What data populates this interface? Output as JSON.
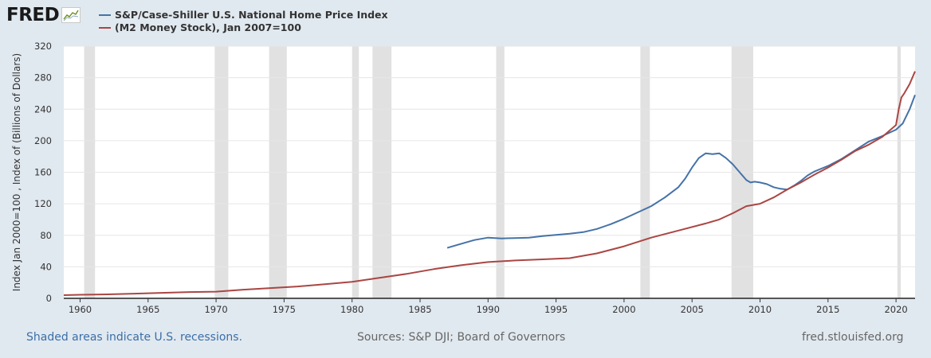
{
  "logo": {
    "text": "FRED",
    "graph_icon": "line-chart-icon"
  },
  "legend": [
    {
      "line1": "S&P/Case-Shiller U.S. National Home Price Index",
      "line2": "",
      "color": "#4572a7"
    },
    {
      "line1": "(M2 Money Stock), Jan 2007=100",
      "line2": "",
      "color": "#aa4643"
    }
  ],
  "footer": {
    "left": "Shaded areas indicate U.S. recessions.",
    "middle": "Sources: S&P DJI; Board of Governors",
    "right": "fred.stlouisfed.org"
  },
  "colors": {
    "background": "#e1e9f0",
    "plot_bg": "#ffffff",
    "recession": "#e1e1e1",
    "grid": "#e6e6e6"
  },
  "chart_data": {
    "type": "line",
    "ylabel": "Index Jan 2000=100 , Index of (Billions of Dollars)",
    "xlabel": "",
    "xlim": [
      1958.8,
      2021.4
    ],
    "ylim": [
      0,
      320
    ],
    "x_ticks": [
      1960,
      1965,
      1970,
      1975,
      1980,
      1985,
      1990,
      1995,
      2000,
      2005,
      2010,
      2015,
      2020
    ],
    "y_ticks": [
      0,
      40,
      80,
      120,
      160,
      200,
      240,
      280,
      320
    ],
    "recessions": [
      [
        1960.3,
        1961.1
      ],
      [
        1969.9,
        1970.9
      ],
      [
        1973.9,
        1975.2
      ],
      [
        1980.0,
        1980.5
      ],
      [
        1981.5,
        1982.9
      ],
      [
        1990.6,
        1991.2
      ],
      [
        2001.2,
        2001.9
      ],
      [
        2007.9,
        2009.5
      ],
      [
        2020.1,
        2020.35
      ]
    ],
    "series": [
      {
        "name": "S&P/Case-Shiller U.S. National Home Price Index",
        "color": "#4572a7",
        "x": [
          1987.0,
          1988.0,
          1989.0,
          1990.0,
          1991.0,
          1992.0,
          1993.0,
          1994.0,
          1995.0,
          1996.0,
          1997.0,
          1998.0,
          1999.0,
          2000.0,
          2001.0,
          2002.0,
          2003.0,
          2004.0,
          2004.5,
          2005.0,
          2005.5,
          2006.0,
          2006.5,
          2007.0,
          2007.5,
          2008.0,
          2008.5,
          2009.0,
          2009.3,
          2009.6,
          2010.0,
          2010.5,
          2011.0,
          2011.5,
          2012.0,
          2012.5,
          2013.0,
          2013.5,
          2014.0,
          2015.0,
          2016.0,
          2017.0,
          2018.0,
          2019.0,
          2020.0,
          2020.5,
          2021.0,
          2021.4
        ],
        "y": [
          64,
          69,
          74,
          77,
          76,
          76.5,
          77,
          79,
          80.5,
          82,
          84,
          88,
          94,
          101,
          109,
          117,
          128,
          141,
          152,
          166,
          178,
          184,
          183,
          184,
          178,
          170,
          160,
          150,
          147,
          148,
          147,
          145,
          141,
          139,
          138,
          143,
          149,
          156,
          161,
          168,
          177,
          188,
          199,
          206,
          214,
          222,
          240,
          258
        ]
      },
      {
        "name": "(M2 Money Stock), Jan 2007=100",
        "color": "#aa4643",
        "x": [
          1958.8,
          1960.0,
          1962.0,
          1964.0,
          1966.0,
          1968.0,
          1970.0,
          1972.0,
          1974.0,
          1976.0,
          1978.0,
          1980.0,
          1982.0,
          1984.0,
          1986.0,
          1988.0,
          1990.0,
          1992.0,
          1994.0,
          1996.0,
          1998.0,
          2000.0,
          2002.0,
          2004.0,
          2006.0,
          2007.0,
          2008.0,
          2009.0,
          2010.0,
          2011.0,
          2012.0,
          2013.0,
          2014.0,
          2015.0,
          2016.0,
          2017.0,
          2018.0,
          2019.0,
          2020.0,
          2020.2,
          2020.4,
          2020.6,
          2021.0,
          2021.4
        ],
        "y": [
          4,
          4.5,
          5,
          6,
          7,
          8,
          8.5,
          11,
          13,
          15,
          18,
          21,
          26,
          31,
          37,
          42,
          46,
          48,
          49.5,
          51,
          57,
          66,
          77,
          86,
          95,
          100,
          108,
          117,
          120,
          128,
          138,
          147,
          157,
          166,
          176,
          187,
          195,
          205,
          220,
          240,
          255,
          260,
          272,
          288
        ]
      }
    ]
  }
}
